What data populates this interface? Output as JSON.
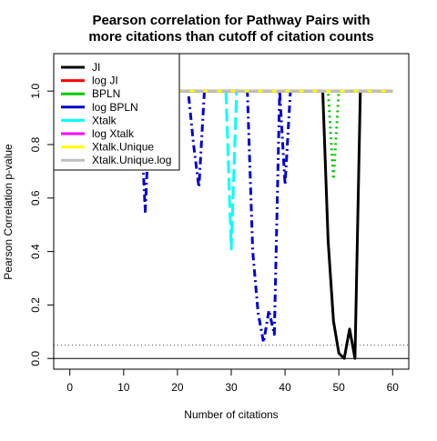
{
  "chart_data": {
    "type": "line",
    "title": [
      "Pearson correlation for Pathway Pairs with",
      "more citations than cutoff of citation counts"
    ],
    "xlabel": "Number of citations",
    "ylabel": "Pearson Correlation p-value",
    "xlim": [
      -3,
      63
    ],
    "ylim": [
      -0.04,
      1.14
    ],
    "x_ticks": [
      0,
      10,
      20,
      30,
      40,
      50,
      60
    ],
    "y_ticks": [
      0.0,
      0.2,
      0.4,
      0.6,
      0.8,
      1.0
    ],
    "y_tick_labels": [
      "0.0",
      "0.2",
      "0.4",
      "0.6",
      "0.8",
      "1.0"
    ],
    "reference_lines": [
      {
        "y": 0.05,
        "style": "dotted",
        "color": "#555555"
      },
      {
        "y": 0.0,
        "style": "solid",
        "color": "#000000"
      }
    ],
    "legend_position": "top-left",
    "series": [
      {
        "name": "JI",
        "color": "#000000",
        "dash": "solid",
        "x": [
          13,
          47,
          48,
          49,
          50,
          51,
          52,
          53,
          54,
          60
        ],
        "y": [
          1.0,
          1.0,
          0.44,
          0.14,
          0.02,
          0.0,
          0.11,
          0.0,
          1.0,
          1.0
        ]
      },
      {
        "name": "log JI",
        "color": "#ff0000",
        "dash": "dashed",
        "x": [
          13,
          60
        ],
        "y": [
          1.0,
          1.0
        ]
      },
      {
        "name": "BPLN",
        "color": "#00cc00",
        "dash": "dotted",
        "x": [
          13,
          48,
          49,
          50,
          60
        ],
        "y": [
          1.0,
          1.0,
          0.67,
          1.0,
          1.0
        ]
      },
      {
        "name": "log BPLN",
        "color": "#0000cc",
        "dash": "dotdash",
        "x": [
          13,
          14,
          15,
          22,
          23,
          24,
          25,
          33,
          34,
          35,
          36,
          37,
          38,
          39,
          40,
          41,
          60
        ],
        "y": [
          1.0,
          0.55,
          1.0,
          1.0,
          0.8,
          0.64,
          1.0,
          1.0,
          0.4,
          0.17,
          0.06,
          0.18,
          0.09,
          1.0,
          0.65,
          1.0,
          1.0
        ]
      },
      {
        "name": "Xtalk",
        "color": "#00ffff",
        "dash": "longdash",
        "x": [
          13,
          29,
          30,
          31,
          60
        ],
        "y": [
          1.0,
          1.0,
          0.41,
          1.0,
          1.0
        ]
      },
      {
        "name": "log Xtalk",
        "color": "#ff00ff",
        "dash": "twodash",
        "x": [
          13,
          60
        ],
        "y": [
          1.0,
          1.0
        ]
      },
      {
        "name": "Xtalk.Unique",
        "color": "#ffff00",
        "dash": "solid",
        "x": [
          13,
          60
        ],
        "y": [
          1.0,
          1.0
        ]
      },
      {
        "name": "Xtalk.Unique.log",
        "color": "#bebebe",
        "dash": "dashed",
        "x": [
          13,
          60
        ],
        "y": [
          1.0,
          1.0
        ]
      }
    ]
  }
}
